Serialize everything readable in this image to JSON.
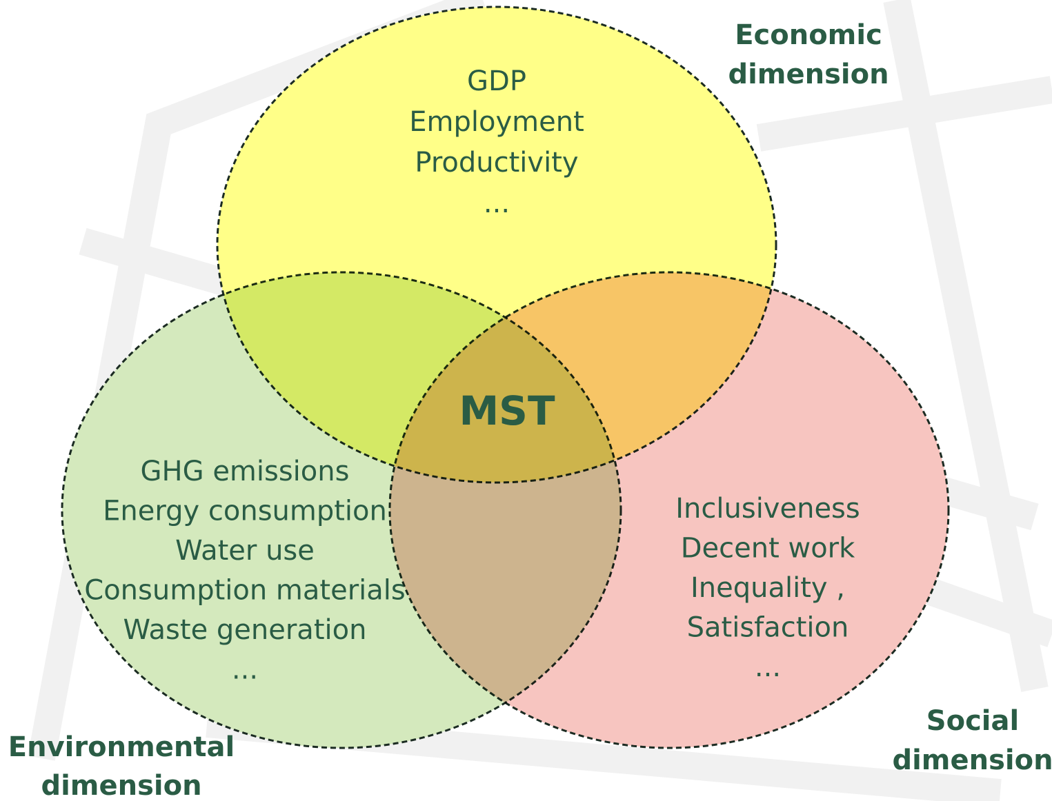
{
  "center": "MST",
  "sets": [
    {
      "label": [
        "Economic",
        "dimension"
      ],
      "items": [
        "GDP",
        "Employment",
        "Productivity",
        "..."
      ]
    },
    {
      "label": [
        "Environmental",
        "dimension"
      ],
      "items": [
        "GHG emissions",
        "Energy consumption",
        "Water use",
        "Consumption materials",
        "Waste generation",
        "..."
      ]
    },
    {
      "label": [
        "Social",
        "dimension"
      ],
      "items": [
        "Inclusiveness",
        "Decent work",
        "Inequality ,",
        "Satisfaction",
        "..."
      ]
    }
  ]
}
